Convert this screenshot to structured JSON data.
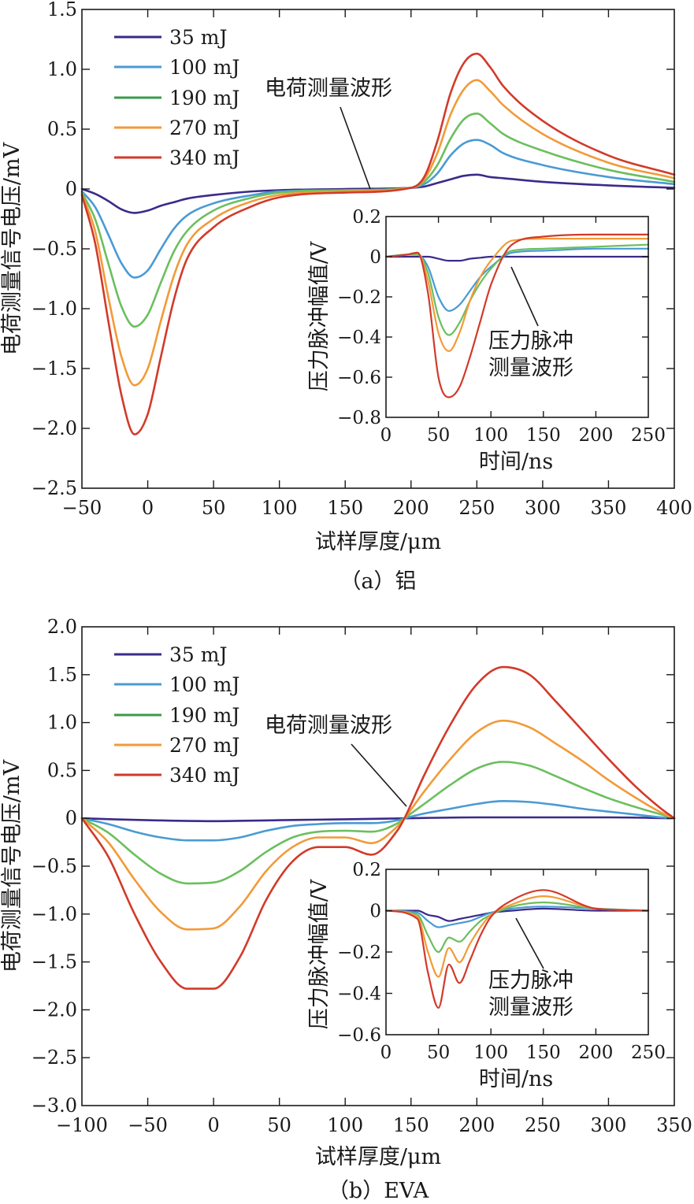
{
  "chart_data": [
    {
      "type": "line",
      "caption": "（a）铝",
      "xlabel": "试样厚度/μm",
      "ylabel": "电荷测量信号电压/mV",
      "xlim": [
        -50,
        400
      ],
      "ylim": [
        -2.5,
        1.5
      ],
      "xticks": [
        "−50",
        "0",
        "50",
        "100",
        "150",
        "200",
        "250",
        "300",
        "350",
        "400"
      ],
      "yticks": [
        "1.5",
        "1.0",
        "0.5",
        "0",
        "−0.5",
        "−1.0",
        "−1.5",
        "−2.0",
        "−2.5"
      ],
      "legend": {
        "position": "top-left",
        "entries": [
          "35 mJ",
          "100 mJ",
          "190 mJ",
          "270 mJ",
          "340 mJ"
        ]
      },
      "annotation": "电荷测量波形",
      "series": [
        {
          "name": "35 mJ",
          "color": "#3b2a8a",
          "x": [
            -50,
            -40,
            -30,
            -20,
            -10,
            0,
            10,
            20,
            30,
            50,
            80,
            100,
            150,
            200,
            210,
            220,
            230,
            240,
            250,
            260,
            270,
            300,
            350,
            400
          ],
          "y": [
            0,
            -0.04,
            -0.1,
            -0.17,
            -0.2,
            -0.18,
            -0.14,
            -0.11,
            -0.08,
            -0.05,
            -0.02,
            -0.01,
            0,
            0.01,
            0.02,
            0.05,
            0.08,
            0.11,
            0.12,
            0.1,
            0.09,
            0.06,
            0.03,
            0.01
          ]
        },
        {
          "name": "100 mJ",
          "color": "#4a9ad4",
          "x": [
            -50,
            -40,
            -30,
            -20,
            -10,
            0,
            10,
            20,
            30,
            50,
            80,
            100,
            150,
            200,
            210,
            220,
            230,
            240,
            250,
            260,
            270,
            300,
            350,
            400
          ],
          "y": [
            -0.02,
            -0.15,
            -0.38,
            -0.62,
            -0.74,
            -0.68,
            -0.5,
            -0.33,
            -0.22,
            -0.12,
            -0.05,
            -0.02,
            -0.01,
            0.01,
            0.04,
            0.13,
            0.28,
            0.38,
            0.41,
            0.37,
            0.3,
            0.2,
            0.1,
            0.04
          ]
        },
        {
          "name": "190 mJ",
          "color": "#6bbf5e",
          "x": [
            -50,
            -40,
            -30,
            -20,
            -10,
            0,
            10,
            20,
            30,
            50,
            80,
            100,
            150,
            200,
            210,
            220,
            230,
            240,
            250,
            260,
            270,
            300,
            350,
            400
          ],
          "y": [
            -0.03,
            -0.25,
            -0.62,
            -0.98,
            -1.15,
            -1.05,
            -0.78,
            -0.52,
            -0.35,
            -0.18,
            -0.07,
            -0.03,
            -0.01,
            0.01,
            0.06,
            0.2,
            0.42,
            0.58,
            0.63,
            0.55,
            0.46,
            0.32,
            0.16,
            0.06
          ]
        },
        {
          "name": "270 mJ",
          "color": "#f29a38",
          "x": [
            -50,
            -40,
            -30,
            -20,
            -10,
            0,
            10,
            20,
            30,
            50,
            80,
            100,
            150,
            200,
            210,
            220,
            230,
            240,
            250,
            260,
            270,
            300,
            350,
            400
          ],
          "y": [
            -0.04,
            -0.35,
            -0.9,
            -1.4,
            -1.64,
            -1.5,
            -1.1,
            -0.72,
            -0.46,
            -0.25,
            -0.1,
            -0.05,
            -0.02,
            0.01,
            0.08,
            0.3,
            0.62,
            0.83,
            0.91,
            0.82,
            0.7,
            0.46,
            0.22,
            0.09
          ]
        },
        {
          "name": "340 mJ",
          "color": "#d23a2a",
          "x": [
            -50,
            -40,
            -30,
            -20,
            -10,
            0,
            10,
            20,
            30,
            50,
            80,
            100,
            150,
            200,
            210,
            220,
            230,
            240,
            250,
            260,
            270,
            300,
            350,
            400
          ],
          "y": [
            -0.05,
            -0.45,
            -1.1,
            -1.72,
            -2.05,
            -1.88,
            -1.4,
            -0.92,
            -0.58,
            -0.32,
            -0.14,
            -0.07,
            -0.03,
            0.01,
            0.1,
            0.4,
            0.8,
            1.05,
            1.13,
            1.02,
            0.86,
            0.57,
            0.28,
            0.12
          ]
        }
      ],
      "inset": {
        "type": "line",
        "xlabel": "时间/ns",
        "ylabel": "压力脉冲幅值/V",
        "xlim": [
          0,
          250
        ],
        "ylim": [
          -0.8,
          0.2
        ],
        "xticks": [
          "0",
          "50",
          "100",
          "150",
          "200",
          "250"
        ],
        "yticks": [
          "0.2",
          "0",
          "−0.2",
          "−0.4",
          "−0.6",
          "−0.8"
        ],
        "annotation": [
          "压力脉冲",
          "测量波形"
        ],
        "series": [
          {
            "name": "35 mJ",
            "color": "#3b2a8a",
            "x": [
              0,
              20,
              30,
              40,
              50,
              60,
              70,
              80,
              90,
              100,
              120,
              150,
              200,
              250
            ],
            "y": [
              0,
              0,
              0,
              0,
              -0.01,
              -0.02,
              -0.02,
              -0.01,
              -0.005,
              0,
              0,
              0,
              0,
              0
            ]
          },
          {
            "name": "100 mJ",
            "color": "#4a9ad4",
            "x": [
              0,
              20,
              30,
              40,
              50,
              60,
              70,
              80,
              90,
              100,
              120,
              150,
              200,
              250
            ],
            "y": [
              0,
              0.01,
              0.01,
              -0.05,
              -0.2,
              -0.27,
              -0.24,
              -0.17,
              -0.1,
              -0.05,
              0.02,
              0.03,
              0.04,
              0.04
            ]
          },
          {
            "name": "190 mJ",
            "color": "#6bbf5e",
            "x": [
              0,
              20,
              30,
              40,
              50,
              60,
              70,
              80,
              90,
              100,
              120,
              150,
              200,
              250
            ],
            "y": [
              0,
              0.01,
              0.01,
              -0.08,
              -0.3,
              -0.39,
              -0.33,
              -0.22,
              -0.13,
              -0.06,
              0.03,
              0.04,
              0.05,
              0.06
            ]
          },
          {
            "name": "270 mJ",
            "color": "#f29a38",
            "x": [
              0,
              20,
              30,
              40,
              50,
              60,
              70,
              80,
              90,
              100,
              120,
              150,
              200,
              250
            ],
            "y": [
              0,
              0.01,
              0.02,
              -0.12,
              -0.38,
              -0.47,
              -0.38,
              -0.22,
              -0.1,
              -0.02,
              0.08,
              0.09,
              0.09,
              0.09
            ]
          },
          {
            "name": "340 mJ",
            "color": "#d23a2a",
            "x": [
              0,
              20,
              30,
              40,
              50,
              60,
              70,
              80,
              90,
              100,
              120,
              150,
              200,
              250
            ],
            "y": [
              0,
              0.01,
              0.02,
              -0.18,
              -0.6,
              -0.7,
              -0.65,
              -0.5,
              -0.32,
              -0.14,
              0.06,
              0.1,
              0.11,
              0.11
            ]
          }
        ]
      }
    },
    {
      "type": "line",
      "caption": "（b）EVA",
      "xlabel": "试样厚度/μm",
      "ylabel": "电荷测量信号电压/mV",
      "xlim": [
        -100,
        350
      ],
      "ylim": [
        -3.0,
        2.0
      ],
      "xticks": [
        "−100",
        "−50",
        "0",
        "50",
        "100",
        "150",
        "200",
        "250",
        "300",
        "350"
      ],
      "yticks": [
        "2.0",
        "1.5",
        "1.0",
        "0.5",
        "0",
        "−0.5",
        "−1.0",
        "−1.5",
        "−2.0",
        "−2.5",
        "−3.0"
      ],
      "legend": {
        "position": "top-left",
        "entries": [
          "35 mJ",
          "100 mJ",
          "190 mJ",
          "270 mJ",
          "340 mJ"
        ]
      },
      "annotation": "电荷测量波形",
      "series": [
        {
          "name": "35 mJ",
          "color": "#3b2a8a",
          "x": [
            -100,
            -50,
            0,
            50,
            100,
            145,
            200,
            250,
            300,
            350
          ],
          "y": [
            0,
            -0.02,
            -0.03,
            -0.02,
            -0.01,
            0,
            0.01,
            0.01,
            0.01,
            0
          ]
        },
        {
          "name": "100 mJ",
          "color": "#4a9ad4",
          "x": [
            -100,
            -80,
            -60,
            -40,
            -20,
            0,
            20,
            40,
            60,
            80,
            100,
            120,
            140,
            145,
            160,
            180,
            200,
            220,
            240,
            260,
            280,
            300,
            320,
            340,
            350
          ],
          "y": [
            0,
            -0.06,
            -0.14,
            -0.2,
            -0.23,
            -0.23,
            -0.2,
            -0.13,
            -0.08,
            -0.06,
            -0.05,
            -0.05,
            -0.02,
            0,
            0.05,
            0.1,
            0.15,
            0.18,
            0.17,
            0.14,
            0.1,
            0.07,
            0.04,
            0.01,
            0
          ]
        },
        {
          "name": "190 mJ",
          "color": "#6bbf5e",
          "x": [
            -100,
            -80,
            -60,
            -40,
            -20,
            0,
            20,
            40,
            60,
            80,
            100,
            120,
            140,
            145,
            160,
            180,
            200,
            220,
            240,
            260,
            280,
            300,
            320,
            340,
            350
          ],
          "y": [
            0,
            -0.15,
            -0.38,
            -0.58,
            -0.68,
            -0.67,
            -0.55,
            -0.35,
            -0.2,
            -0.14,
            -0.13,
            -0.14,
            -0.05,
            0,
            0.15,
            0.35,
            0.52,
            0.59,
            0.55,
            0.44,
            0.32,
            0.21,
            0.12,
            0.04,
            0
          ]
        },
        {
          "name": "270 mJ",
          "color": "#f29a38",
          "x": [
            -100,
            -80,
            -60,
            -40,
            -20,
            0,
            20,
            40,
            60,
            80,
            100,
            120,
            140,
            145,
            160,
            180,
            200,
            220,
            240,
            260,
            280,
            300,
            320,
            340,
            350
          ],
          "y": [
            0,
            -0.25,
            -0.64,
            -0.98,
            -1.16,
            -1.15,
            -0.92,
            -0.55,
            -0.3,
            -0.2,
            -0.2,
            -0.26,
            -0.08,
            0,
            0.28,
            0.62,
            0.9,
            1.02,
            0.95,
            0.78,
            0.6,
            0.4,
            0.22,
            0.06,
            0
          ]
        },
        {
          "name": "340 mJ",
          "color": "#d23a2a",
          "x": [
            -100,
            -80,
            -60,
            -40,
            -20,
            0,
            20,
            40,
            60,
            80,
            100,
            120,
            140,
            145,
            160,
            180,
            200,
            220,
            240,
            260,
            280,
            300,
            320,
            340,
            350
          ],
          "y": [
            0,
            -0.4,
            -1.0,
            -1.5,
            -1.78,
            -1.78,
            -1.45,
            -0.85,
            -0.45,
            -0.3,
            -0.3,
            -0.38,
            -0.12,
            0,
            0.45,
            0.98,
            1.4,
            1.58,
            1.5,
            1.22,
            0.92,
            0.62,
            0.34,
            0.1,
            0
          ]
        }
      ],
      "inset": {
        "type": "line",
        "xlabel": "时间/ns",
        "ylabel": "压力脉冲幅值/V",
        "xlim": [
          0,
          250
        ],
        "ylim": [
          -0.6,
          0.2
        ],
        "xticks": [
          "0",
          "50",
          "100",
          "150",
          "200",
          "250"
        ],
        "yticks": [
          "0.2",
          "0",
          "−0.2",
          "−0.4",
          "−0.6"
        ],
        "annotation": [
          "压力脉冲",
          "测量波形"
        ],
        "series": [
          {
            "name": "35 mJ",
            "color": "#3b2a8a",
            "x": [
              0,
              30,
              40,
              50,
              60,
              70,
              80,
              90,
              100,
              120,
              150,
              200,
              250
            ],
            "y": [
              0,
              0,
              -0.02,
              -0.03,
              -0.05,
              -0.04,
              -0.03,
              -0.02,
              -0.01,
              0,
              0.01,
              0,
              0
            ]
          },
          {
            "name": "100 mJ",
            "color": "#4a9ad4",
            "x": [
              0,
              30,
              40,
              50,
              60,
              70,
              80,
              90,
              100,
              120,
              150,
              200,
              250
            ],
            "y": [
              0,
              -0.01,
              -0.05,
              -0.08,
              -0.07,
              -0.06,
              -0.05,
              -0.03,
              -0.01,
              0.01,
              0.02,
              0.01,
              0
            ]
          },
          {
            "name": "190 mJ",
            "color": "#6bbf5e",
            "x": [
              0,
              30,
              40,
              50,
              60,
              70,
              80,
              90,
              100,
              120,
              150,
              200,
              250
            ],
            "y": [
              0,
              -0.02,
              -0.12,
              -0.2,
              -0.13,
              -0.15,
              -0.1,
              -0.05,
              -0.02,
              0.02,
              0.04,
              0.01,
              0
            ]
          },
          {
            "name": "270 mJ",
            "color": "#f29a38",
            "x": [
              0,
              30,
              40,
              50,
              60,
              70,
              80,
              90,
              100,
              120,
              150,
              200,
              250
            ],
            "y": [
              0,
              -0.03,
              -0.2,
              -0.32,
              -0.18,
              -0.25,
              -0.16,
              -0.08,
              -0.02,
              0.03,
              0.07,
              0.01,
              0
            ]
          },
          {
            "name": "340 mJ",
            "color": "#d23a2a",
            "x": [
              0,
              30,
              40,
              50,
              60,
              70,
              80,
              90,
              100,
              120,
              150,
              200,
              250
            ],
            "y": [
              0,
              -0.04,
              -0.3,
              -0.47,
              -0.26,
              -0.35,
              -0.24,
              -0.12,
              -0.03,
              0.05,
              0.1,
              0.01,
              0
            ]
          }
        ]
      }
    }
  ]
}
